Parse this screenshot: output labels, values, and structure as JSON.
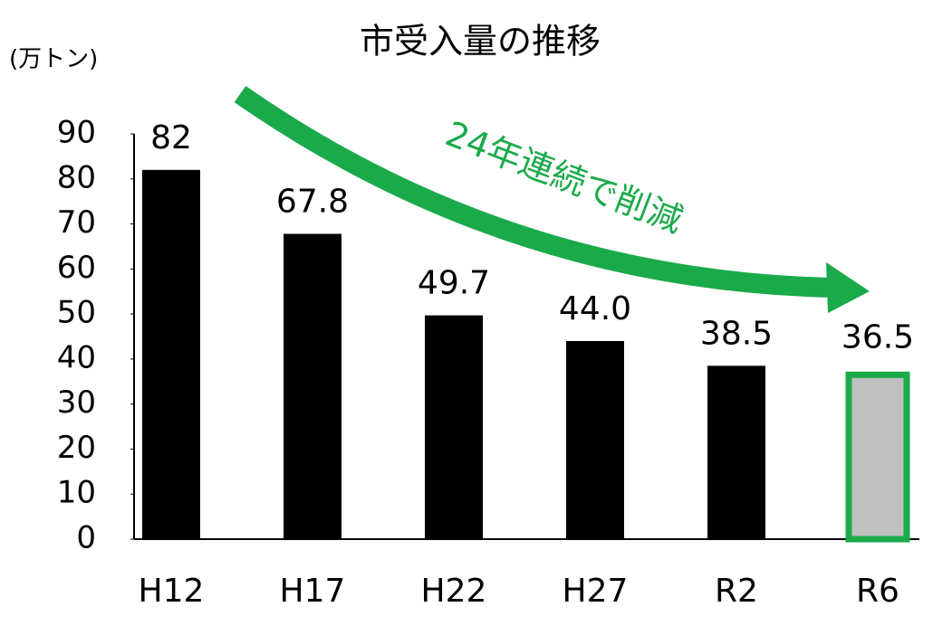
{
  "chart_data": {
    "type": "bar",
    "title": "市受入量の推移",
    "y_label": "(万トン)",
    "categories": [
      "H12",
      "H17",
      "H22",
      "H27",
      "R2",
      "R6"
    ],
    "values": [
      82,
      67.8,
      49.7,
      44.0,
      38.5,
      36.5
    ],
    "value_labels": [
      "82",
      "67.8",
      "49.7",
      "44.0",
      "38.5",
      "36.5"
    ],
    "colors": [
      "#000000",
      "#000000",
      "#000000",
      "#000000",
      "#000000",
      "#bfbfbf"
    ],
    "highlight": {
      "index": 5,
      "edge_color": "#1aaa4a"
    },
    "annotation": {
      "text": "24年連続で削減",
      "color": "#1aaa4a"
    },
    "ylim": [
      0,
      90
    ],
    "yticks": [
      0,
      10,
      20,
      30,
      40,
      50,
      60,
      70,
      80,
      90
    ],
    "grid": false
  }
}
